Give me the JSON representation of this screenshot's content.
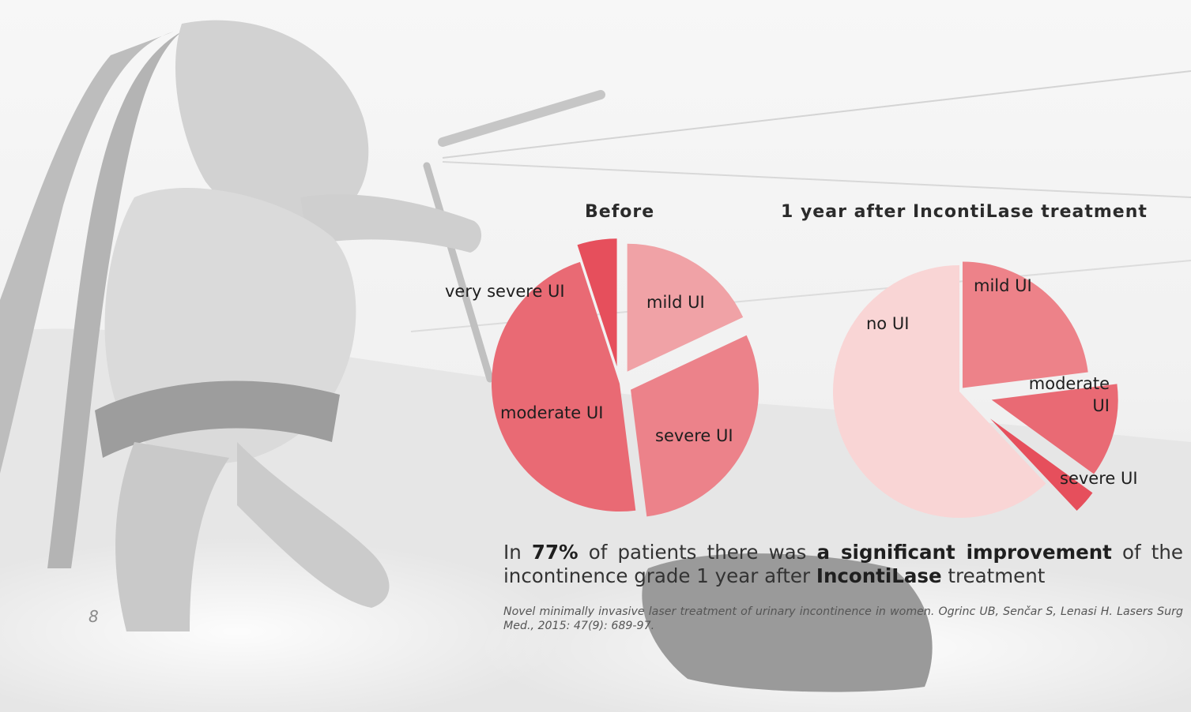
{
  "page_number": "8",
  "summary": {
    "t1": "In ",
    "b1": "77%",
    "t2": " of patients there was ",
    "b2": "a significant improvement",
    "t3": " of the incontinence grade 1 year after ",
    "b3": "IncontiLase",
    "t4": " treatment"
  },
  "citation": "Novel minimally invasive laser treatment of urinary incontinence in women. Ogrinc UB, Senčar S, Lenasi H. Lasers Surg Med., 2015: 47(9): 689-97.",
  "chart_data": [
    {
      "type": "pie",
      "title": "Before",
      "slices": [
        {
          "label": "mild UI",
          "value": 18,
          "color": "#f0a2a6"
        },
        {
          "label": "severe UI",
          "value": 30,
          "color": "#ec828a"
        },
        {
          "label": "moderate UI",
          "value": 47,
          "color": "#e96a74"
        },
        {
          "label": "very severe UI",
          "value": 5,
          "color": "#e64f5c"
        }
      ]
    },
    {
      "type": "pie",
      "title": "1 year after IncontiLase treatment",
      "slices": [
        {
          "label": "mild UI",
          "value": 23,
          "color": "#ed8289"
        },
        {
          "label": "moderate UI",
          "value": 12,
          "color": "#e96a74"
        },
        {
          "label": "severe UI",
          "value": 3,
          "color": "#e64f5c"
        },
        {
          "label": "no UI",
          "value": 62,
          "color": "#f9d5d5"
        }
      ]
    }
  ]
}
